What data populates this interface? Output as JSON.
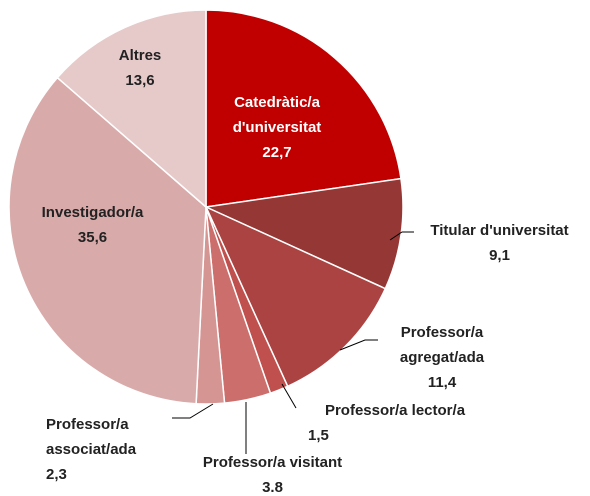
{
  "chart_data": {
    "type": "pie",
    "categories": [
      "Catedràtic/a d'universitat",
      "Titular d'universitat",
      "Professor/a agregat/ada",
      "Professor/a lector/a",
      "Professor/a visitant",
      "Professor/a associat/ada",
      "Investigador/a",
      "Altres"
    ],
    "values": [
      22.7,
      9.1,
      11.4,
      1.5,
      3.8,
      2.3,
      35.6,
      13.6
    ],
    "value_labels": [
      "22,7",
      "9,1",
      "11,4",
      "1,5",
      "3.8",
      "2,3",
      "35,6",
      "13,6"
    ],
    "colors": [
      "#c00000",
      "#953735",
      "#aa4341",
      "#c0504d",
      "#cc6e6b",
      "#d49593",
      "#d9aaaa",
      "#e6c9c9"
    ]
  }
}
